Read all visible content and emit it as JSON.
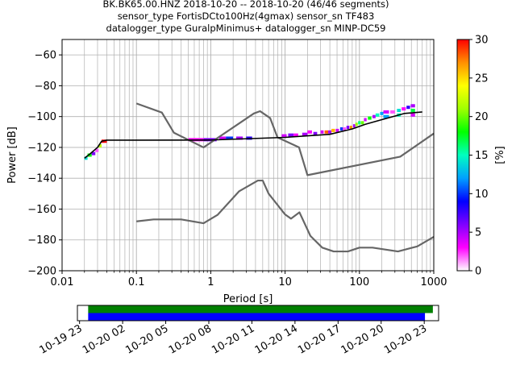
{
  "title_lines": [
    "BK.BK65.00.HNZ   2018-10-20 -- 2018-10-20  (46/46 segments)",
    "sensor_type FortisDCto100Hz(4gmax) sensor_sn TF483",
    "datalogger_type GuralpMinimus+ datalogger_sn MINP-DC59"
  ],
  "chart_data": {
    "type": "heatmap",
    "xlabel": "Period [s]",
    "ylabel": "Power [dB]",
    "xscale": "log",
    "xlim": [
      0.01,
      1000
    ],
    "ylim": [
      -200,
      -50
    ],
    "x_ticks": [
      0.01,
      0.1,
      1,
      10,
      100,
      1000
    ],
    "x_tick_labels": [
      "0.01",
      "0.1",
      "1",
      "10",
      "100",
      "1000"
    ],
    "y_ticks": [
      -200,
      -180,
      -160,
      -140,
      -120,
      -100,
      -80,
      -60
    ],
    "y_tick_labels": [
      "−200",
      "−180",
      "−160",
      "−140",
      "−120",
      "−100",
      "−80",
      "−60"
    ],
    "grid": true,
    "colorbar": {
      "label": "[%]",
      "range": [
        0,
        30
      ],
      "ticks": [
        0,
        5,
        10,
        15,
        20,
        25,
        30
      ],
      "tick_labels": [
        "0",
        "5",
        "10",
        "15",
        "20",
        "25",
        "30"
      ],
      "colormap_stops": [
        "#ffffff",
        "#ff00ff",
        "#7f00ff",
        "#0000ff",
        "#00a0ff",
        "#00ffc0",
        "#00ff00",
        "#a0ff00",
        "#ffff00",
        "#ff9000",
        "#ff0000"
      ]
    },
    "model_curves": [
      {
        "points": [
          [
            0.1,
            -91.5
          ],
          [
            0.22,
            -97.4
          ],
          [
            0.32,
            -110.5
          ],
          [
            0.8,
            -120
          ],
          [
            3.8,
            -98
          ],
          [
            4.6,
            -96.5
          ],
          [
            6.3,
            -101
          ],
          [
            7.9,
            -113.5
          ],
          [
            15.4,
            -120
          ],
          [
            20,
            -138
          ],
          [
            354,
            -126
          ],
          [
            1000,
            -111
          ]
        ]
      },
      {
        "points": [
          [
            0.1,
            -168
          ],
          [
            0.17,
            -166.7
          ],
          [
            0.4,
            -166.7
          ],
          [
            0.8,
            -169.2
          ],
          [
            1.24,
            -163.7
          ],
          [
            2.4,
            -148.5
          ],
          [
            4.3,
            -141.5
          ],
          [
            5.0,
            -141.5
          ],
          [
            6.0,
            -150
          ],
          [
            10,
            -163.5
          ],
          [
            12,
            -166.2
          ],
          [
            15.6,
            -162.1
          ],
          [
            21.9,
            -177.4
          ],
          [
            31.6,
            -185
          ],
          [
            45,
            -187.5
          ],
          [
            70,
            -187.5
          ],
          [
            100,
            -185
          ],
          [
            150,
            -185
          ],
          [
            330,
            -187.5
          ],
          [
            600,
            -184.2
          ],
          [
            1000,
            -178
          ]
        ]
      }
    ],
    "mode_curve": {
      "points": [
        [
          0.02,
          -127
        ],
        [
          0.024,
          -124
        ],
        [
          0.03,
          -120
        ],
        [
          0.034,
          -116
        ],
        [
          0.04,
          -115.3
        ],
        [
          0.1,
          -115.3
        ],
        [
          1,
          -115.2
        ],
        [
          10,
          -113.5
        ],
        [
          20,
          -112.5
        ],
        [
          40,
          -111.5
        ],
        [
          80,
          -108
        ],
        [
          120,
          -105
        ],
        [
          200,
          -102
        ],
        [
          400,
          -98
        ],
        [
          700,
          -97
        ]
      ]
    },
    "psd_cells": [
      [
        0.02,
        -127,
        0.022,
        14
      ],
      [
        0.022,
        -125,
        0.025,
        18
      ],
      [
        0.025,
        -124,
        0.028,
        6
      ],
      [
        0.028,
        -122,
        0.031,
        2
      ],
      [
        0.031,
        -119,
        0.034,
        22
      ],
      [
        0.034,
        -116,
        0.04,
        30
      ],
      [
        0.5,
        -115,
        0.8,
        3
      ],
      [
        0.8,
        -115,
        1.2,
        6
      ],
      [
        1.3,
        -114,
        1.6,
        4
      ],
      [
        1.6,
        -114,
        2,
        10
      ],
      [
        2.2,
        -114,
        2.7,
        5
      ],
      [
        3,
        -114,
        3.6,
        8
      ],
      [
        9,
        -112.5,
        10.5,
        4
      ],
      [
        11,
        -112,
        13,
        6
      ],
      [
        13,
        -112,
        15,
        3
      ],
      [
        17,
        -111.5,
        20,
        5
      ],
      [
        20,
        -110,
        23,
        3
      ],
      [
        24,
        -111,
        27,
        6
      ],
      [
        30,
        -110,
        33,
        4
      ],
      [
        34,
        -110,
        38,
        28
      ],
      [
        38,
        -110,
        42,
        5
      ],
      [
        42,
        -109,
        47,
        26
      ],
      [
        48,
        -109,
        53,
        4
      ],
      [
        55,
        -108,
        60,
        10
      ],
      [
        60,
        -108,
        66,
        2
      ],
      [
        67,
        -107,
        73,
        6
      ],
      [
        74,
        -107,
        80,
        27
      ],
      [
        82,
        -106,
        88,
        5
      ],
      [
        88,
        -105,
        95,
        21
      ],
      [
        96,
        -104,
        104,
        16
      ],
      [
        105,
        -104,
        115,
        20
      ],
      [
        115,
        -102,
        125,
        4
      ],
      [
        130,
        -101,
        145,
        18
      ],
      [
        150,
        -100,
        165,
        5
      ],
      [
        165,
        -99,
        185,
        15
      ],
      [
        190,
        -98,
        210,
        12
      ],
      [
        210,
        -97,
        250,
        4
      ],
      [
        260,
        -97,
        300,
        2
      ],
      [
        320,
        -96,
        360,
        14
      ],
      [
        370,
        -95,
        420,
        3
      ],
      [
        430,
        -94,
        480,
        8
      ],
      [
        490,
        -93,
        560,
        5
      ],
      [
        490,
        -96,
        560,
        17
      ],
      [
        490,
        -99,
        560,
        4
      ],
      [
        320,
        -99,
        360,
        15
      ],
      [
        210,
        -100,
        250,
        12
      ]
    ],
    "timeline": {
      "tick_labels": [
        "10-19 23",
        "10-20 02",
        "10-20 05",
        "10-20 08",
        "10-20 11",
        "10-20 14",
        "10-20 17",
        "10-20 20",
        "10-20 23"
      ],
      "tick_hours": [
        23,
        26,
        29,
        32,
        35,
        38,
        41,
        44,
        47
      ],
      "range_hours": [
        22.85,
        48.0
      ],
      "data_bar": {
        "start_hour": 23.6,
        "end_hour": 47.6,
        "color": "#008000"
      },
      "psd_bar": {
        "start_hour": 23.6,
        "end_hour": 47.05,
        "color": "#0000ff"
      }
    }
  }
}
